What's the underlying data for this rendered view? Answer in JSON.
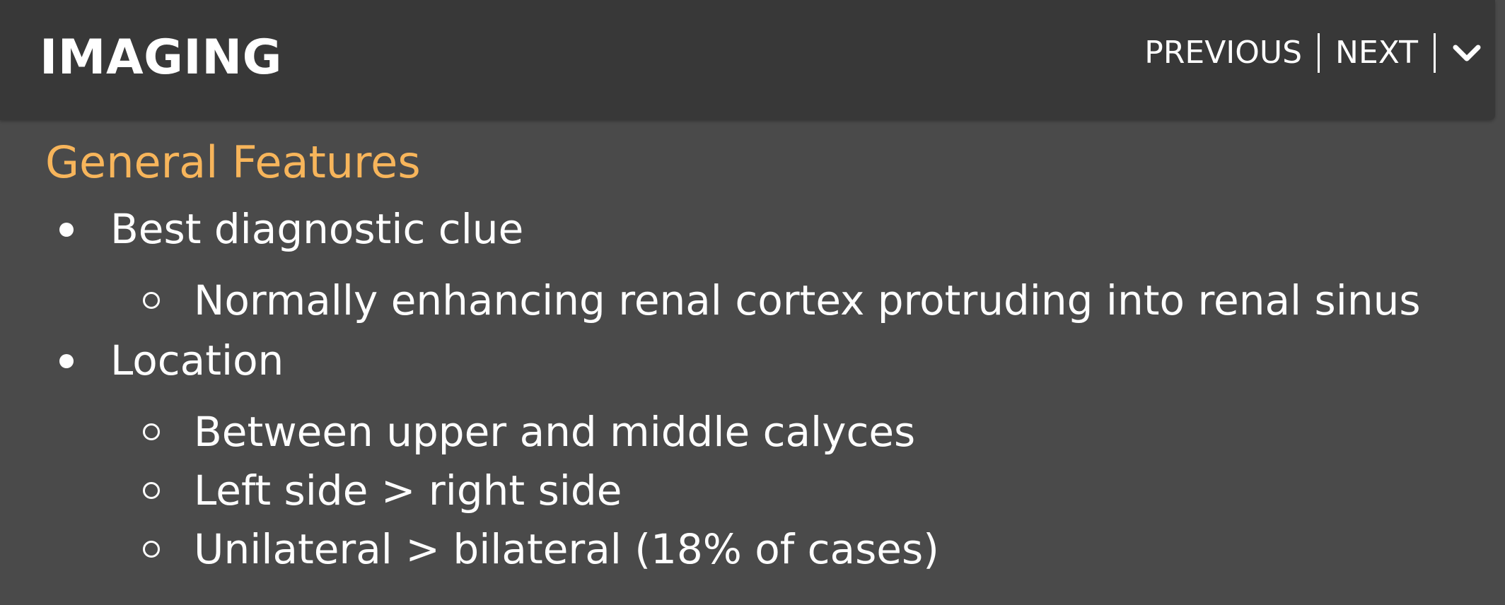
{
  "header": {
    "title": "IMAGING",
    "previous_label": "PREVIOUS",
    "next_label": "NEXT",
    "menu_icon": "chevron-down-icon"
  },
  "section": {
    "title": "General Features",
    "items": [
      {
        "label": "Best diagnostic clue",
        "subitems": [
          "Normally enhancing renal cortex protruding into renal sinus"
        ]
      },
      {
        "label": "Location",
        "subitems": [
          "Between upper and middle calyces",
          "Left side > right side",
          "Unilateral > bilateral (18% of cases)"
        ]
      }
    ]
  },
  "colors": {
    "header_bg": "#383838",
    "page_bg": "#4a4a4a",
    "section_title": "#f7b55b",
    "text": "#ffffff"
  }
}
